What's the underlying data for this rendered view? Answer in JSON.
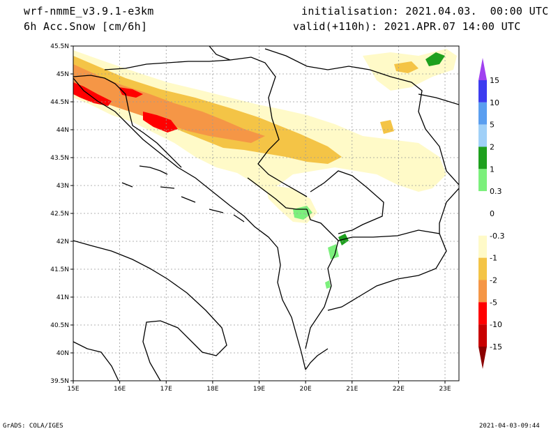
{
  "header": {
    "model": "wrf-nmmE_v3.9.1-e3km",
    "field": "6h Acc.Snow [cm/6h]",
    "init": "initialisation: 2021.04.03.  00:00 UTC",
    "valid": "valid(+110h): 2021.APR.07 14:00 UTC"
  },
  "footer": {
    "left": "GrADS: COLA/IGES",
    "right": "2021-04-03-09:44"
  },
  "map": {
    "lon_ticks": [
      "15E",
      "16E",
      "17E",
      "18E",
      "19E",
      "20E",
      "21E",
      "22E",
      "23E"
    ],
    "lat_ticks": [
      "45.5N",
      "45N",
      "44.5N",
      "44N",
      "43.5N",
      "43N",
      "42.5N",
      "42N",
      "41.5N",
      "41N",
      "40.5N",
      "40N",
      "39.5N"
    ],
    "lon_range": [
      15,
      23.3
    ],
    "lat_range": [
      39.5,
      45.5
    ],
    "grid": true
  },
  "colorbar": {
    "labels": [
      "15",
      "10",
      "5",
      "2",
      "1",
      "0.3",
      "0",
      "-0.3",
      "-1",
      "-2",
      "-5",
      "-10",
      "-15"
    ],
    "top_arrow_color": "#a040f0",
    "bottom_arrow_color": "#8b0000",
    "colors": [
      "#3c3cf0",
      "#5a9ef0",
      "#a0d0f8",
      "#1ea01e",
      "#7cf07c",
      "#ffffff",
      "#ffffff",
      "#fffac8",
      "#f4c446",
      "#f59646",
      "#ff0000",
      "#c80000"
    ]
  },
  "snow_colors": {
    "light": "#fffac8",
    "moderate": "#f4c446",
    "heavy": "#f59646",
    "severe": "#ff0000",
    "green_light": "#7cf07c",
    "green_dark": "#1ea01e"
  }
}
